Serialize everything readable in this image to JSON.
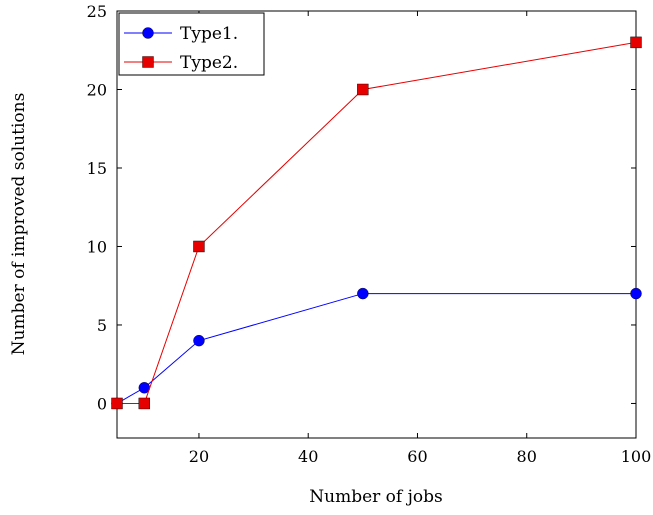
{
  "chart_data": {
    "type": "line",
    "title": "",
    "xlabel": "Number of jobs",
    "ylabel": "Number of improved solutions",
    "x": [
      5,
      10,
      20,
      50,
      100
    ],
    "xlim": [
      5,
      100
    ],
    "ylim": [
      -2.2,
      25
    ],
    "xticks": [
      20,
      40,
      60,
      80,
      100
    ],
    "yticks": [
      0,
      5,
      10,
      15,
      20,
      25
    ],
    "grid": false,
    "legend_position": "top-left",
    "series": [
      {
        "name": "Type1.",
        "values": [
          0,
          1,
          4,
          7,
          7
        ],
        "color": "#0000ff",
        "marker": "circle"
      },
      {
        "name": "Type2.",
        "values": [
          0,
          0,
          10,
          20,
          23
        ],
        "color": "#e60000",
        "marker": "square"
      }
    ]
  }
}
